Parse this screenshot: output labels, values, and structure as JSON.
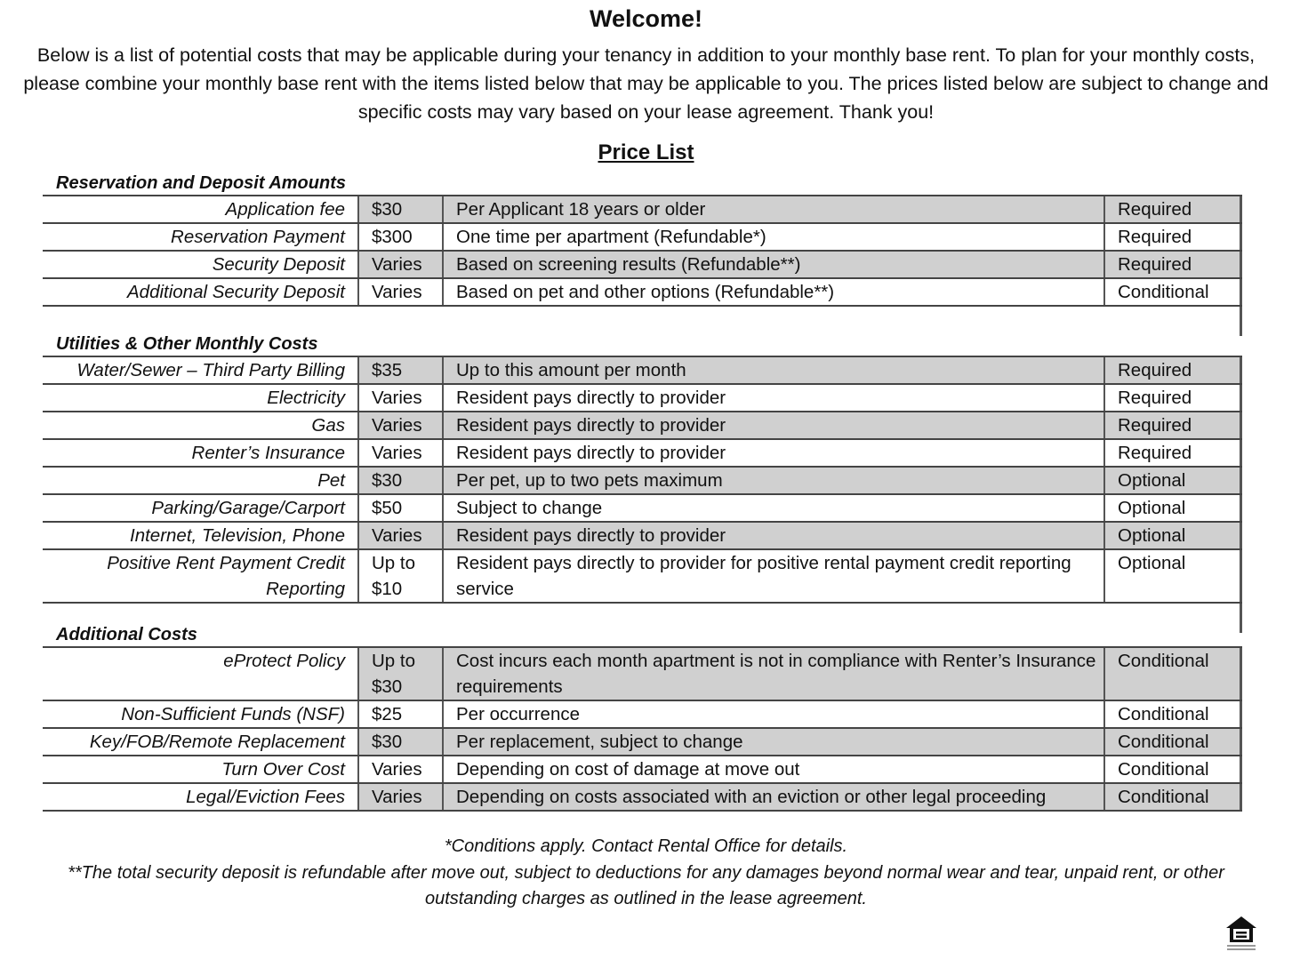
{
  "title": "Welcome!",
  "intro": "Below is a list of potential costs that may be applicable during your tenancy in addition to your monthly base rent. To plan for your monthly costs, please combine your monthly base rent with the items listed below that may be applicable to you. The prices listed below are subject to change and specific costs may vary based on your lease agreement. Thank you!",
  "price_list_heading": "Price List",
  "sections": [
    {
      "heading": "Reservation and Deposit Amounts",
      "rows": [
        {
          "label": "Application fee",
          "amount": "$30",
          "description": "Per Applicant 18 years or older",
          "status": "Required"
        },
        {
          "label": "Reservation Payment",
          "amount": "$300",
          "description": "One time per apartment (Refundable*)",
          "status": "Required"
        },
        {
          "label": "Security Deposit",
          "amount": "Varies",
          "description": "Based on screening results (Refundable**)",
          "status": "Required"
        },
        {
          "label": "Additional Security Deposit",
          "amount": "Varies",
          "description": "Based on pet and other options (Refundable**)",
          "status": "Conditional"
        }
      ]
    },
    {
      "heading": "Utilities & Other Monthly Costs",
      "rows": [
        {
          "label": "Water/Sewer – Third Party Billing",
          "amount": "$35",
          "description": "Up to this amount per month",
          "status": "Required"
        },
        {
          "label": "Electricity",
          "amount": "Varies",
          "description": "Resident pays directly to provider",
          "status": "Required"
        },
        {
          "label": "Gas",
          "amount": "Varies",
          "description": "Resident pays directly to provider",
          "status": "Required"
        },
        {
          "label": "Renter’s Insurance",
          "amount": "Varies",
          "description": "Resident pays directly to provider",
          "status": "Required"
        },
        {
          "label": "Pet",
          "amount": "$30",
          "description": "Per pet, up to two pets maximum",
          "status": "Optional"
        },
        {
          "label": "Parking/Garage/Carport",
          "amount": "$50",
          "description": "Subject to change",
          "status": "Optional"
        },
        {
          "label": "Internet, Television, Phone",
          "amount": "Varies",
          "description": "Resident pays directly to provider",
          "status": "Optional"
        },
        {
          "label": "Positive Rent Payment Credit Reporting",
          "amount": "Up to $10",
          "description": "Resident pays directly to provider for positive rental payment credit reporting service",
          "status": "Optional"
        }
      ]
    },
    {
      "heading": "Additional Costs",
      "rows": [
        {
          "label": "eProtect Policy",
          "amount": "Up to $30",
          "description": "Cost incurs each month apartment is not in compliance with Renter’s Insurance requirements",
          "status": "Conditional"
        },
        {
          "label": "Non-Sufficient Funds (NSF)",
          "amount": "$25",
          "description": "Per occurrence",
          "status": "Conditional"
        },
        {
          "label": "Key/FOB/Remote Replacement",
          "amount": "$30",
          "description": "Per replacement, subject to change",
          "status": "Conditional"
        },
        {
          "label": "Turn Over Cost",
          "amount": "Varies",
          "description": "Depending on cost of damage at move out",
          "status": "Conditional"
        },
        {
          "label": "Legal/Eviction Fees",
          "amount": "Varies",
          "description": "Depending on costs associated with an eviction or other legal proceeding",
          "status": "Conditional"
        }
      ]
    }
  ],
  "footnote_1": "*Conditions apply. Contact Rental Office for details.",
  "footnote_2": "**The total security deposit is refundable after move out, subject to deductions for any damages beyond normal wear and tear, unpaid rent, or other outstanding charges as outlined in the lease agreement.",
  "logo": "equal-housing-opportunity-icon",
  "colors": {
    "shade": "#d0d0d0",
    "border": "#444444"
  }
}
